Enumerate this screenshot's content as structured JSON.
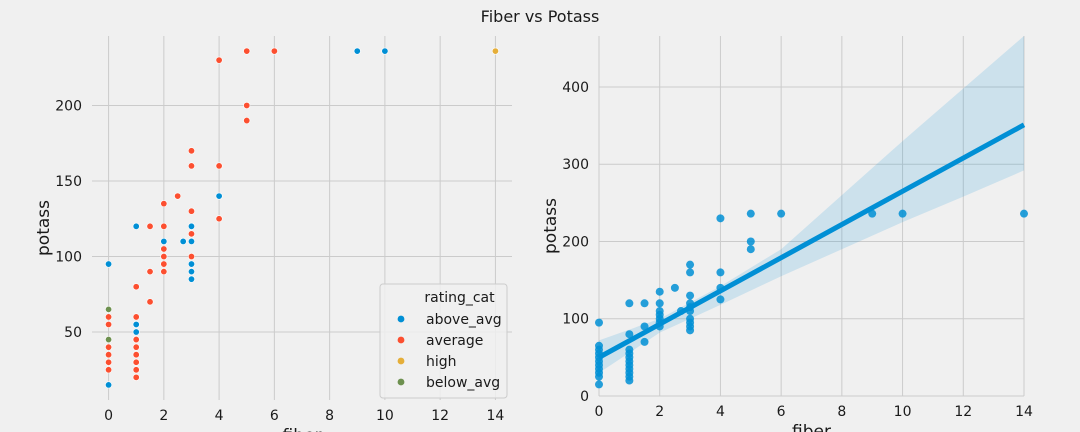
{
  "figure": {
    "title": "Fiber vs Potass"
  },
  "chart_data": [
    {
      "type": "scatter",
      "xlabel": "fiber",
      "ylabel": "potass",
      "xlim": [
        -0.6,
        14.6
      ],
      "ylim": [
        5,
        246
      ],
      "xticks": [
        0,
        2,
        4,
        6,
        8,
        10,
        12,
        14
      ],
      "yticks": [
        50,
        100,
        150,
        200
      ],
      "grid": true,
      "legend": {
        "title": "rating_cat",
        "placement": "lower-right"
      },
      "series": [
        {
          "name": "above_avg",
          "color": "#008fd5",
          "points": [
            [
              0,
              95
            ],
            [
              0,
              15
            ],
            [
              1,
              120
            ],
            [
              1,
              55
            ],
            [
              1,
              50
            ],
            [
              1,
              45
            ],
            [
              2,
              110
            ],
            [
              2.7,
              110
            ],
            [
              3,
              120
            ],
            [
              3,
              110
            ],
            [
              3,
              95
            ],
            [
              3,
              90
            ],
            [
              3,
              85
            ],
            [
              4,
              140
            ],
            [
              9,
              236
            ],
            [
              10,
              236
            ]
          ]
        },
        {
          "name": "average",
          "color": "#fc4f30",
          "points": [
            [
              0,
              60
            ],
            [
              0,
              55
            ],
            [
              0,
              45
            ],
            [
              0,
              40
            ],
            [
              0,
              35
            ],
            [
              0,
              30
            ],
            [
              0,
              25
            ],
            [
              1,
              80
            ],
            [
              1,
              60
            ],
            [
              1,
              45
            ],
            [
              1,
              40
            ],
            [
              1,
              35
            ],
            [
              1,
              30
            ],
            [
              1,
              25
            ],
            [
              1,
              20
            ],
            [
              1.5,
              120
            ],
            [
              1.5,
              90
            ],
            [
              1.5,
              70
            ],
            [
              2,
              135
            ],
            [
              2,
              120
            ],
            [
              2,
              105
            ],
            [
              2,
              100
            ],
            [
              2,
              95
            ],
            [
              2,
              90
            ],
            [
              2.5,
              140
            ],
            [
              3,
              170
            ],
            [
              3,
              160
            ],
            [
              3,
              130
            ],
            [
              3,
              115
            ],
            [
              3,
              100
            ],
            [
              4,
              230
            ],
            [
              4,
              160
            ],
            [
              4,
              125
            ],
            [
              5,
              236
            ],
            [
              5,
              200
            ],
            [
              5,
              190
            ],
            [
              6,
              236
            ]
          ]
        },
        {
          "name": "high",
          "color": "#e5ae38",
          "points": [
            [
              14,
              236
            ]
          ]
        },
        {
          "name": "below_avg",
          "color": "#6d904f",
          "points": [
            [
              0,
              65
            ],
            [
              0,
              45
            ]
          ]
        }
      ]
    },
    {
      "type": "scatter",
      "xlabel": "fiber",
      "ylabel": "potass",
      "xlim": [
        0,
        14
      ],
      "ylim": [
        0,
        466
      ],
      "xticks": [
        0,
        2,
        4,
        6,
        8,
        10,
        12,
        14
      ],
      "yticks": [
        0,
        100,
        200,
        300,
        400
      ],
      "grid": true,
      "color": "#008fd5",
      "regression": {
        "intercept": 50,
        "slope": 21.5,
        "ci_x": [
          0,
          2,
          4,
          6,
          8,
          10,
          12,
          14
        ],
        "ci_lower": [
          30,
          82,
          118,
          155,
          190,
          225,
          258,
          292
        ],
        "ci_upper": [
          72,
          100,
          142,
          190,
          260,
          330,
          398,
          466
        ]
      },
      "points": [
        [
          0,
          95
        ],
        [
          0,
          65
        ],
        [
          0,
          60
        ],
        [
          0,
          55
        ],
        [
          0,
          50
        ],
        [
          0,
          45
        ],
        [
          0,
          40
        ],
        [
          0,
          35
        ],
        [
          0,
          30
        ],
        [
          0,
          25
        ],
        [
          0,
          15
        ],
        [
          1,
          120
        ],
        [
          1,
          80
        ],
        [
          1,
          60
        ],
        [
          1,
          55
        ],
        [
          1,
          50
        ],
        [
          1,
          45
        ],
        [
          1,
          40
        ],
        [
          1,
          35
        ],
        [
          1,
          30
        ],
        [
          1,
          25
        ],
        [
          1,
          20
        ],
        [
          1.5,
          120
        ],
        [
          1.5,
          90
        ],
        [
          1.5,
          70
        ],
        [
          2,
          135
        ],
        [
          2,
          120
        ],
        [
          2,
          110
        ],
        [
          2,
          105
        ],
        [
          2,
          100
        ],
        [
          2,
          95
        ],
        [
          2,
          90
        ],
        [
          2.5,
          140
        ],
        [
          2.7,
          110
        ],
        [
          3,
          170
        ],
        [
          3,
          160
        ],
        [
          3,
          130
        ],
        [
          3,
          120
        ],
        [
          3,
          115
        ],
        [
          3,
          110
        ],
        [
          3,
          100
        ],
        [
          3,
          95
        ],
        [
          3,
          90
        ],
        [
          3,
          85
        ],
        [
          4,
          230
        ],
        [
          4,
          160
        ],
        [
          4,
          140
        ],
        [
          4,
          125
        ],
        [
          5,
          236
        ],
        [
          5,
          200
        ],
        [
          5,
          190
        ],
        [
          6,
          236
        ],
        [
          9,
          236
        ],
        [
          10,
          236
        ],
        [
          14,
          236
        ]
      ]
    }
  ]
}
